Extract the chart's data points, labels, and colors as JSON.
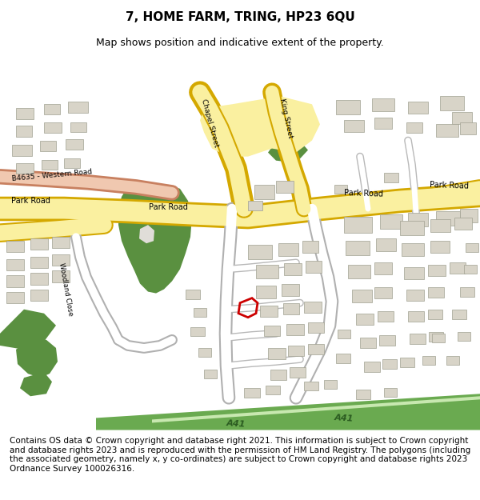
{
  "title": "7, HOME FARM, TRING, HP23 6QU",
  "subtitle": "Map shows position and indicative extent of the property.",
  "footer": "Contains OS data © Crown copyright and database right 2021. This information is subject to Crown copyright and database rights 2023 and is reproduced with the permission of HM Land Registry. The polygons (including the associated geometry, namely x, y co-ordinates) are subject to Crown copyright and database rights 2023 Ordnance Survey 100026316.",
  "map_bg": "#f2f0eb",
  "road_yellow": "#faf0a0",
  "road_yellow_border": "#d4a800",
  "road_pink": "#f0c8b0",
  "road_pink_border": "#c88060",
  "green_dark": "#5a9040",
  "green_light": "#c8e8b0",
  "green_a41": "#6aaa50",
  "building_color": "#d8d4c8",
  "building_border": "#a0a090",
  "red_polygon": "#cc0000",
  "title_fontsize": 11,
  "subtitle_fontsize": 9,
  "footer_fontsize": 7.5
}
